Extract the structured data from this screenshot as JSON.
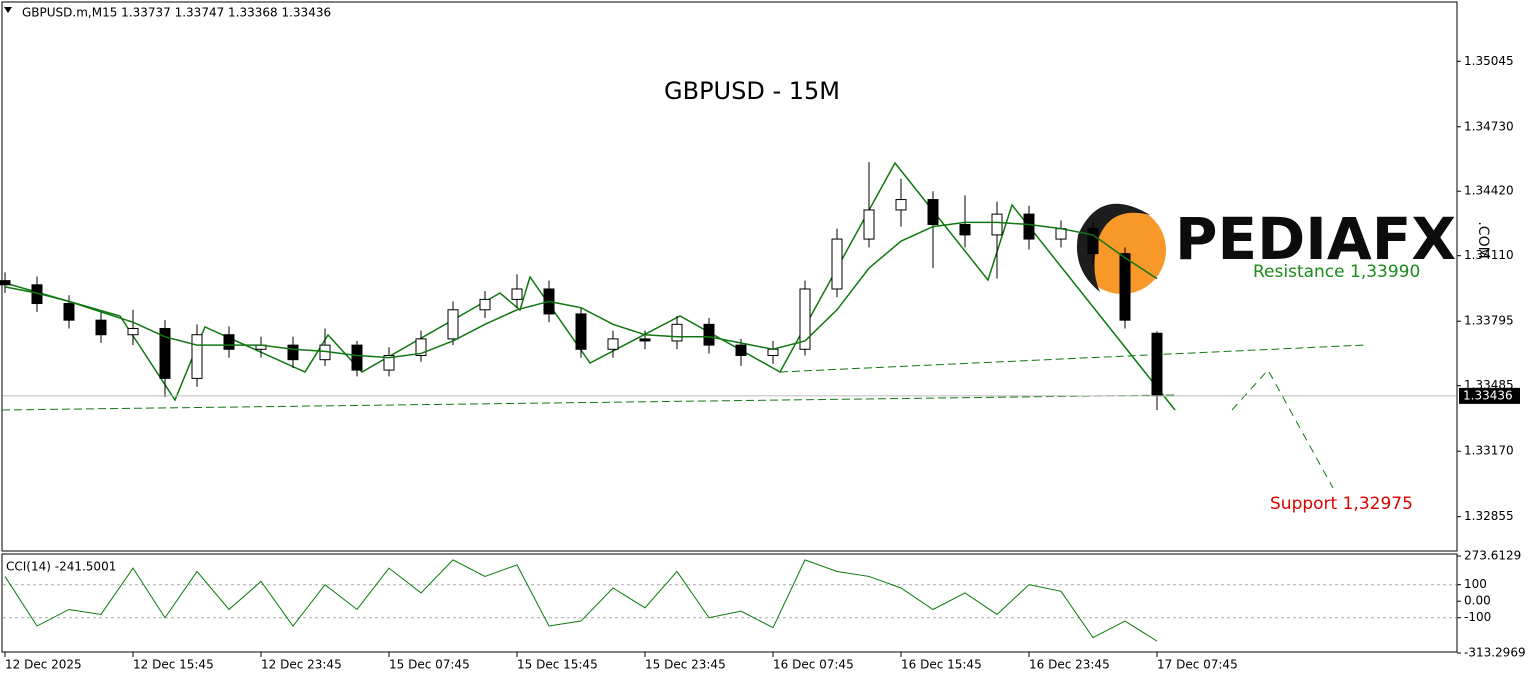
{
  "header": "GBPUSD.m,M15  1.33737 1.33747 1.33368 1.33436",
  "watermark": {
    "brand": "PEDIAFX",
    "domain": ".COM"
  },
  "chart_data": [
    {
      "type": "candlestick",
      "title": "GBPUSD - 15M",
      "annotations": {
        "resistance": "Resistance 1,33990",
        "support": "Support 1,32975"
      },
      "categories": [
        "12 Dec 2025",
        null,
        null,
        null,
        "12 Dec 15:45",
        null,
        null,
        null,
        "12 Dec 23:45",
        null,
        null,
        null,
        "15 Dec 07:45",
        null,
        null,
        null,
        "15 Dec 15:45",
        null,
        null,
        null,
        "15 Dec 23:45",
        null,
        null,
        null,
        "16 Dec 07:45",
        null,
        null,
        null,
        "16 Dec 15:45",
        null,
        null,
        null,
        "16 Dec 23:45",
        null,
        null,
        null,
        "17 Dec 07:45"
      ],
      "open": [
        1.3399,
        1.3397,
        1.3388,
        1.338,
        1.3373,
        1.3376,
        1.3352,
        1.3373,
        1.3366,
        1.3368,
        1.3361,
        1.3368,
        1.3356,
        1.3363,
        1.3371,
        1.3385,
        1.339,
        1.3395,
        1.3383,
        1.3366,
        1.3371,
        1.337,
        1.3378,
        1.3368,
        1.3363,
        1.3366,
        1.3395,
        1.3419,
        1.3433,
        1.3438,
        1.3426,
        1.3421,
        1.3431,
        1.3419,
        1.3424,
        1.3412,
        1.33737
      ],
      "high": [
        1.3403,
        1.3401,
        1.3392,
        1.3384,
        1.3385,
        1.338,
        1.3378,
        1.3377,
        1.3372,
        1.3372,
        1.3376,
        1.337,
        1.3367,
        1.3375,
        1.3389,
        1.3394,
        1.3402,
        1.3399,
        1.3386,
        1.3375,
        1.3375,
        1.3382,
        1.3381,
        1.3371,
        1.337,
        1.3399,
        1.3424,
        1.3456,
        1.3448,
        1.3442,
        1.344,
        1.3437,
        1.3435,
        1.3428,
        1.3427,
        1.3415,
        1.33747
      ],
      "low": [
        1.3393,
        1.3384,
        1.3376,
        1.3369,
        1.3368,
        1.3343,
        1.3348,
        1.3362,
        1.3362,
        1.3357,
        1.3358,
        1.3353,
        1.3353,
        1.336,
        1.3368,
        1.3381,
        1.3386,
        1.3379,
        1.3362,
        1.3362,
        1.3366,
        1.3366,
        1.3364,
        1.3358,
        1.3359,
        1.3363,
        1.3391,
        1.3415,
        1.3425,
        1.3405,
        1.3415,
        1.34,
        1.3414,
        1.3415,
        1.3407,
        1.3376,
        1.33368
      ],
      "close": [
        1.3397,
        1.3388,
        1.338,
        1.3373,
        1.3376,
        1.3352,
        1.3373,
        1.3366,
        1.3368,
        1.3361,
        1.3368,
        1.3356,
        1.3363,
        1.3371,
        1.3385,
        1.339,
        1.3395,
        1.3383,
        1.3366,
        1.3371,
        1.337,
        1.3378,
        1.3368,
        1.3363,
        1.3366,
        1.3395,
        1.3419,
        1.3433,
        1.3438,
        1.3426,
        1.3421,
        1.3431,
        1.3419,
        1.3424,
        1.3412,
        1.338,
        1.33436
      ],
      "ma": [
        1.3396,
        1.3393,
        1.3389,
        1.3384,
        1.3379,
        1.3372,
        1.3368,
        1.3368,
        1.3368,
        1.3366,
        1.3365,
        1.3363,
        1.3362,
        1.3364,
        1.337,
        1.3378,
        1.3385,
        1.3389,
        1.3386,
        1.3378,
        1.3373,
        1.3372,
        1.3372,
        1.3369,
        1.3366,
        1.337,
        1.3385,
        1.3405,
        1.3418,
        1.3425,
        1.3427,
        1.3427,
        1.3426,
        1.3424,
        1.3421,
        1.341,
        1.34
      ],
      "ma_color": "#117711",
      "ylim": [
        1.3269,
        1.3533
      ],
      "yticks": [
        1.35045,
        {
          "value": 1.3473,
          "label": "1.34730"
        },
        {
          "value": 1.3442,
          "label": "1.34420"
        },
        {
          "value": 1.3411,
          "label": "1.34110"
        },
        1.33795,
        1.33485,
        {
          "value": 1.3317,
          "label": "1.33170"
        },
        1.32855
      ]
    },
    {
      "type": "line",
      "title": "CCI(14) -241.5001",
      "color": "#0b7a0b",
      "values": [
        150,
        -150,
        -50,
        -80,
        200,
        -100,
        180,
        -50,
        120,
        -150,
        100,
        -50,
        200,
        50,
        250,
        150,
        220,
        -150,
        -120,
        80,
        -40,
        180,
        -100,
        -60,
        -160,
        250,
        180,
        150,
        80,
        -50,
        50,
        -80,
        100,
        60,
        -220,
        -120,
        -241.5001
      ],
      "ylim": [
        -313.2969,
        273.6129
      ],
      "yticks": [
        273.6129,
        100,
        {
          "value": 0,
          "label": "0.00"
        },
        -100,
        -313.2969
      ]
    }
  ]
}
